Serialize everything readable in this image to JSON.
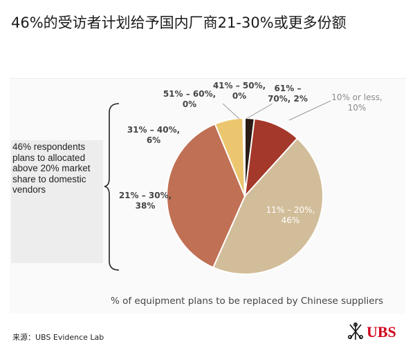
{
  "title": "46%的受访者计划给予国内厂商21-30%或更多份额",
  "callout_text": "46% respondents plans to allocated above 20% market share to domestic vendors",
  "source": "来源：UBS Evidence Lab",
  "logo_text": "UBS",
  "chart_data": {
    "type": "pie",
    "title": "",
    "xlabel": "% of equipment plans to be replaced by Chinese suppliers",
    "start_angle": "12 o'clock, clockwise",
    "slices": [
      {
        "label": "10% or less,",
        "value_label": "10%",
        "value": 10,
        "color": "#a4382a"
      },
      {
        "label": "11% – 20%,",
        "value_label": "46%",
        "value": 46,
        "color": "#d2bd9a"
      },
      {
        "label": "21% – 30%,",
        "value_label": "38%",
        "value": 38,
        "color": "#c07055"
      },
      {
        "label": "31% – 40%,",
        "value_label": "6%",
        "value": 6,
        "color": "#ecc66f"
      },
      {
        "label": "51% – 60%,",
        "value_label": "0%",
        "value": 0,
        "color": "#d9a95a"
      },
      {
        "label": "41% – 50%,",
        "value_label": "0%",
        "value": 0,
        "color": "#8a5a3c"
      },
      {
        "label": "61% –",
        "value_label": "70%, 2%",
        "value": 2,
        "color": "#2b1c16"
      }
    ]
  }
}
